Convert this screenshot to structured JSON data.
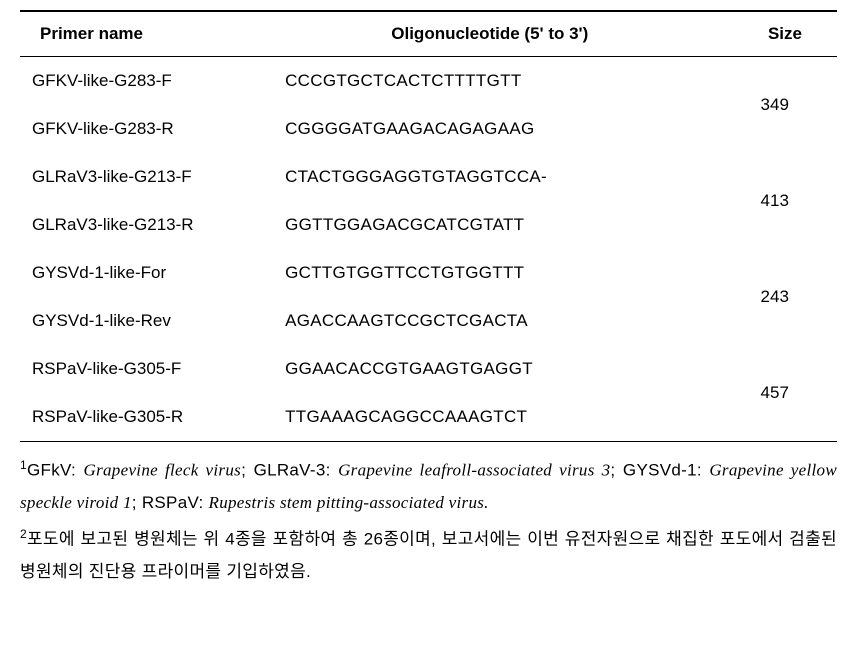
{
  "table": {
    "headers": {
      "primer": "Primer name",
      "oligo": "Oligonucleotide (5' to 3')",
      "size": "Size"
    },
    "rows": [
      {
        "primer": "GFKV-like-G283-F",
        "oligo": "CCCGTGCTCACTCTTTTGTT",
        "size": "349",
        "rowspan": 2,
        "showSize": true
      },
      {
        "primer": "GFKV-like-G283-R",
        "oligo": "CGGGGATGAAGACAGAGAAG",
        "size": "",
        "showSize": false
      },
      {
        "primer": "GLRaV3-like-G213-F",
        "oligo": "CTACTGGGAGGTGTAGGTCCA-",
        "size": "413",
        "rowspan": 2,
        "showSize": true
      },
      {
        "primer": "GLRaV3-like-G213-R",
        "oligo": "GGTTGGAGACGCATCGTATT",
        "size": "",
        "showSize": false
      },
      {
        "primer": "GYSVd-1-like-For",
        "oligo": "GCTTGTGGTTCCTGTGGTTT",
        "size": "243",
        "rowspan": 2,
        "showSize": true
      },
      {
        "primer": "GYSVd-1-like-Rev",
        "oligo": "AGACCAAGTCCGCTCGACTA",
        "size": "",
        "showSize": false
      },
      {
        "primer": "RSPaV-like-G305-F",
        "oligo": "GGAACACCGTGAAGTGAGGT",
        "size": "457",
        "rowspan": 2,
        "showSize": true
      },
      {
        "primer": "RSPaV-like-G305-R",
        "oligo": "TTGAAAGCAGGCCAAAGTCT",
        "size": "",
        "showSize": false
      }
    ]
  },
  "footnotes": {
    "note1": {
      "sup": "1",
      "parts": [
        {
          "text": "GFkV: ",
          "italic": false
        },
        {
          "text": "Grapevine fleck virus",
          "italic": true
        },
        {
          "text": "; GLRaV-3: ",
          "italic": false
        },
        {
          "text": "Grapevine leafroll-associated virus 3",
          "italic": true
        },
        {
          "text": "; GYSVd-1: ",
          "italic": false
        },
        {
          "text": "Grapevine yellow speckle viroid 1",
          "italic": true
        },
        {
          "text": "; RSPaV: ",
          "italic": false
        },
        {
          "text": "Rupestris stem pitting-associated virus.",
          "italic": true
        }
      ]
    },
    "note2": {
      "sup": "2",
      "text": "포도에 보고된 병원체는 위 4종을 포함하여 총 26종이며, 보고서에는 이번 유전자원으로 채집한 포도에서 검출된 병원체의 진단용 프라이머를 기입하였음."
    }
  }
}
